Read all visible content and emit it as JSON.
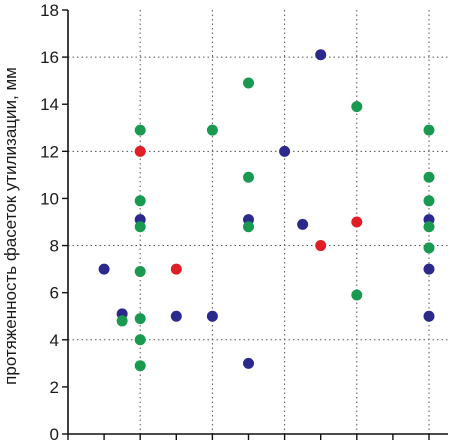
{
  "chart_data": {
    "type": "scatter",
    "title": "",
    "xlabel": "",
    "ylabel": "протяженность фасеток утилизации, мм",
    "xlim": [
      0,
      10.5
    ],
    "ylim": [
      0,
      18
    ],
    "y_ticks": [
      0,
      2,
      4,
      6,
      8,
      10,
      12,
      14,
      16,
      18
    ],
    "x_tick_count": 11,
    "grid": "dotted, on",
    "colors": {
      "blue": "#2b2a8c",
      "green": "#1a9a50",
      "red": "#e01e26"
    },
    "series": [
      {
        "color": "blue",
        "points": [
          {
            "x": 1,
            "y": 7.0
          },
          {
            "x": 1.5,
            "y": 5.1
          },
          {
            "x": 2,
            "y": 9.1
          },
          {
            "x": 3,
            "y": 5.0
          },
          {
            "x": 4,
            "y": 5.0
          },
          {
            "x": 5,
            "y": 9.1
          },
          {
            "x": 5,
            "y": 3.0
          },
          {
            "x": 6,
            "y": 12.0
          },
          {
            "x": 6.5,
            "y": 8.9
          },
          {
            "x": 7,
            "y": 16.1
          },
          {
            "x": 10,
            "y": 9.1
          },
          {
            "x": 10,
            "y": 7.0
          },
          {
            "x": 10,
            "y": 5.0
          }
        ]
      },
      {
        "color": "green",
        "points": [
          {
            "x": 1.5,
            "y": 4.8
          },
          {
            "x": 2,
            "y": 12.9
          },
          {
            "x": 2,
            "y": 9.9
          },
          {
            "x": 2,
            "y": 8.8
          },
          {
            "x": 2,
            "y": 6.9
          },
          {
            "x": 2,
            "y": 4.9
          },
          {
            "x": 2,
            "y": 4.0
          },
          {
            "x": 2,
            "y": 2.9
          },
          {
            "x": 4,
            "y": 12.9
          },
          {
            "x": 5,
            "y": 14.9
          },
          {
            "x": 5,
            "y": 10.9
          },
          {
            "x": 5,
            "y": 8.8
          },
          {
            "x": 8,
            "y": 13.9
          },
          {
            "x": 8,
            "y": 5.9
          },
          {
            "x": 10,
            "y": 12.9
          },
          {
            "x": 10,
            "y": 10.9
          },
          {
            "x": 10,
            "y": 9.9
          },
          {
            "x": 10,
            "y": 8.8
          },
          {
            "x": 10,
            "y": 7.9
          }
        ]
      },
      {
        "color": "red",
        "points": [
          {
            "x": 2,
            "y": 12.0
          },
          {
            "x": 3,
            "y": 7.0
          },
          {
            "x": 7,
            "y": 8.0
          },
          {
            "x": 8,
            "y": 9.0
          }
        ]
      }
    ]
  }
}
